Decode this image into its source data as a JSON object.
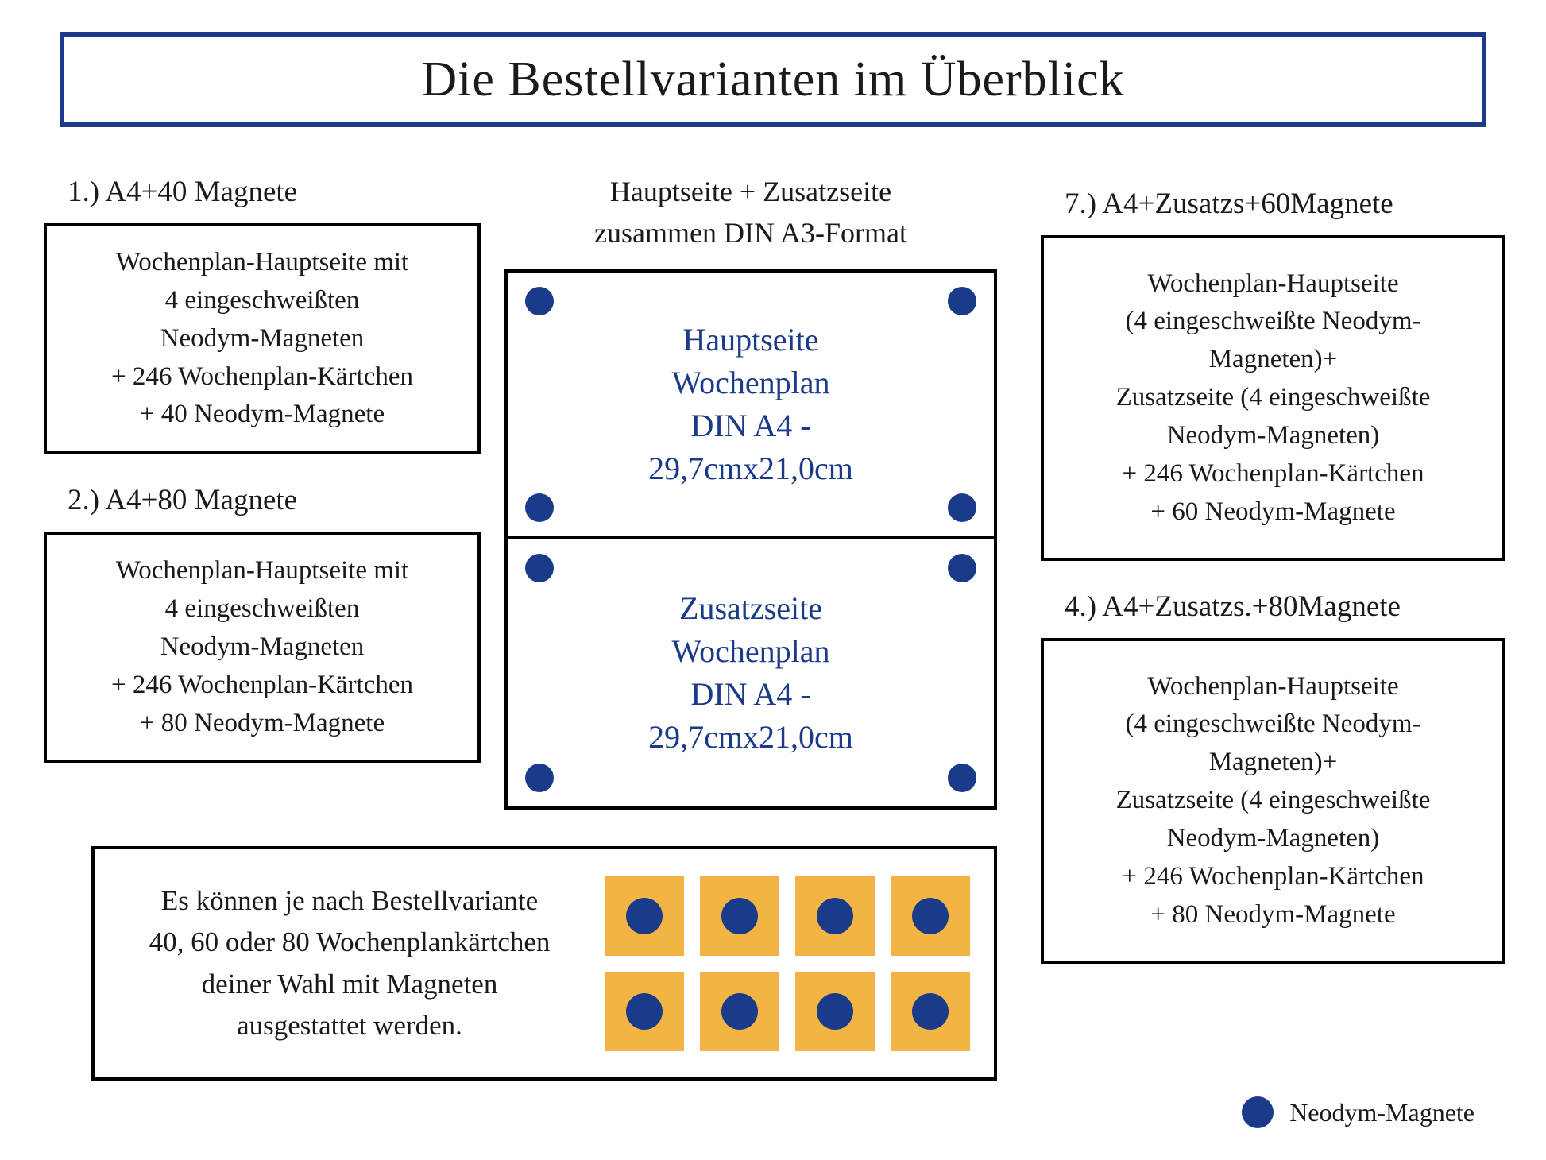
{
  "colors": {
    "accent": "#1a3a8a",
    "card": "#f2b544",
    "border": "#000000",
    "bg": "#ffffff"
  },
  "title": "Die Bestellvarianten im Überblick",
  "left": {
    "opt1": {
      "title": "1.) A4+40 Magnete",
      "body": "Wochenplan-Hauptseite mit\n4 eingeschweißten\nNeodym-Magneten\n+ 246 Wochenplan-Kärtchen\n+ 40 Neodym-Magnete"
    },
    "opt2": {
      "title": "2.) A4+80 Magnete",
      "body": "Wochenplan-Hauptseite mit\n4 eingeschweißten\nNeodym-Magneten\n+ 246 Wochenplan-Kärtchen\n+ 80 Neodym-Magnete"
    }
  },
  "mid": {
    "header": "Hauptseite + Zusatzseite\nzusammen DIN A3-Format",
    "page1": "Hauptseite\nWochenplan\nDIN A4 -\n29,7cmx21,0cm",
    "page2": "Zusatzseite\nWochenplan\nDIN A4 -\n29,7cmx21,0cm"
  },
  "right": {
    "opt7": {
      "title": "7.) A4+Zusatzs+60Magnete",
      "body": "Wochenplan-Hauptseite\n(4 eingeschweißte Neodym-\nMagneten)+\nZusatzseite (4 eingeschweißte\nNeodym-Magneten)\n+ 246 Wochenplan-Kärtchen\n+ 60 Neodym-Magnete"
    },
    "opt4": {
      "title": "4.) A4+Zusatzs.+80Magnete",
      "body": "Wochenplan-Hauptseite\n(4 eingeschweißte Neodym-\nMagneten)+\nZusatzseite (4 eingeschweißte\nNeodym-Magneten)\n+ 246 Wochenplan-Kärtchen\n+ 80 Neodym-Magnete"
    }
  },
  "bottom": {
    "text": "Es können je nach Bestellvariante\n40, 60 oder 80 Wochenplankärtchen\ndeiner Wahl mit Magneten\nausgestattet werden.",
    "card_count": 8
  },
  "legend": "Neodym-Magnete"
}
